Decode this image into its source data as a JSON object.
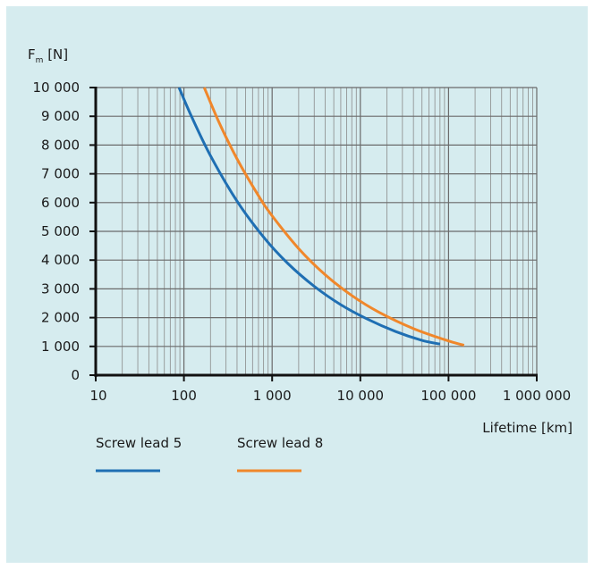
{
  "chart_data": {
    "type": "line",
    "title": "",
    "ylabel_main": "F",
    "ylabel_sub": "m",
    "ylabel_unit": " [N]",
    "xlabel": "Lifetime [km]",
    "x_scale": "log",
    "xlim": [
      10,
      1000000
    ],
    "ylim": [
      0,
      10000
    ],
    "grid": true,
    "legend_position": "bottom-left",
    "x_ticks": [
      10,
      100,
      1000,
      10000,
      100000,
      1000000
    ],
    "x_tick_labels": [
      "10",
      "100",
      "1 000",
      "10 000",
      "100 000",
      "1 000 000"
    ],
    "y_ticks": [
      0,
      1000,
      2000,
      3000,
      4000,
      5000,
      6000,
      7000,
      8000,
      9000,
      10000
    ],
    "y_tick_labels": [
      "0",
      "1 000",
      "2 000",
      "3 000",
      "4 000",
      "5 000",
      "6 000",
      "7 000",
      "8 000",
      "9 000",
      "10 000"
    ],
    "series": [
      {
        "name": "Screw lead 5",
        "color": "#1f6fb3",
        "x": [
          88,
          120,
          200,
          400,
          800,
          1500,
          3000,
          6000,
          12000,
          25000,
          50000,
          80000
        ],
        "y": [
          10000,
          9040,
          7630,
          6050,
          4800,
          3890,
          3090,
          2450,
          1950,
          1520,
          1210,
          1080
        ]
      },
      {
        "name": "Screw lead 8",
        "color": "#f0872b",
        "x": [
          170,
          250,
          400,
          700,
          1000,
          2000,
          4000,
          8000,
          16000,
          40000,
          100000,
          150000
        ],
        "y": [
          10000,
          8790,
          7520,
          6240,
          5540,
          4400,
          3490,
          2770,
          2200,
          1620,
          1190,
          1040
        ]
      }
    ]
  }
}
